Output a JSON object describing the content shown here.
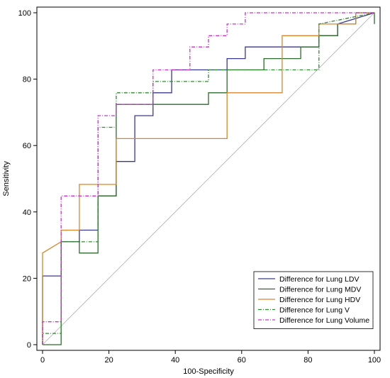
{
  "chart_data": {
    "type": "line",
    "title": "",
    "xlabel": "100-Specificity",
    "ylabel": "Sensitivity",
    "xlim": [
      0,
      100
    ],
    "ylim": [
      0,
      100
    ],
    "x_ticks": [
      0,
      20,
      40,
      60,
      80,
      100
    ],
    "y_ticks": [
      0,
      20,
      40,
      60,
      80,
      100
    ],
    "x_tick_labels": [
      "0",
      "20",
      "40",
      "60",
      "80",
      "100"
    ],
    "y_tick_labels": [
      "0",
      "20",
      "40",
      "60",
      "80",
      "100"
    ],
    "grid": false,
    "legend_position": "bottom-right",
    "reference_line": {
      "from": [
        0,
        0
      ],
      "to": [
        100,
        100
      ],
      "color": "#b0b0b0"
    },
    "series": [
      {
        "name": "Difference for Lung LDV",
        "color": "#3a3a8c",
        "dash": "solid",
        "x": [
          0,
          0,
          5.6,
          5.6,
          11.1,
          11.1,
          16.7,
          16.7,
          22.2,
          22.2,
          27.8,
          27.8,
          33.3,
          33.3,
          38.9,
          38.9,
          55.6,
          55.6,
          61.1,
          61.1,
          83.3,
          83.3,
          88.9,
          88.9,
          100
        ],
        "y": [
          0,
          20.7,
          20.7,
          31.0,
          31.0,
          34.5,
          34.5,
          44.8,
          44.8,
          55.2,
          55.2,
          69.0,
          69.0,
          75.9,
          75.9,
          82.8,
          82.8,
          86.2,
          86.2,
          89.7,
          89.7,
          93.1,
          93.1,
          96.6,
          100
        ]
      },
      {
        "name": "Difference for Lung MDV",
        "color": "#2e6b2e",
        "dash": "solid",
        "x": [
          0,
          5.6,
          5.6,
          11.1,
          11.1,
          16.7,
          16.7,
          22.2,
          22.2,
          50.0,
          50.0,
          55.6,
          55.6,
          66.7,
          66.7,
          77.8,
          77.8,
          83.3,
          83.3,
          88.9,
          88.9,
          94.4,
          94.4,
          100,
          100
        ],
        "y": [
          0,
          0,
          31.0,
          31.0,
          27.6,
          27.6,
          44.8,
          44.8,
          72.4,
          72.4,
          75.9,
          75.9,
          82.8,
          82.8,
          86.2,
          86.2,
          89.7,
          89.7,
          93.1,
          93.1,
          96.6,
          96.6,
          100,
          100,
          96.6
        ]
      },
      {
        "name": "Difference for Lung HDV",
        "color": "#d9862b",
        "dash": "solid",
        "x": [
          0,
          0,
          5.6,
          5.6,
          11.1,
          11.1,
          22.2,
          22.2,
          55.6,
          55.6,
          72.2,
          72.2,
          83.3,
          83.3,
          94.4,
          94.4,
          100
        ],
        "y": [
          0,
          27.6,
          31.0,
          34.5,
          34.5,
          48.3,
          48.3,
          62.1,
          62.1,
          75.9,
          75.9,
          93.1,
          93.1,
          96.6,
          96.6,
          100,
          100
        ]
      },
      {
        "name": "Difference for Lung V",
        "color": "#2e8b2e",
        "dash": "dashdot",
        "x": [
          0,
          0,
          5.6,
          5.6,
          11.1,
          11.1,
          16.7,
          16.7,
          22.2,
          22.2,
          33.3,
          33.3,
          44.4,
          44.4,
          50.0,
          50.0,
          66.7,
          66.7,
          83.3,
          83.3,
          100
        ],
        "y": [
          0,
          3.4,
          3.4,
          31.0,
          31.0,
          31.0,
          31.0,
          65.5,
          65.5,
          75.9,
          75.9,
          79.3,
          79.3,
          79.3,
          79.3,
          82.8,
          82.8,
          82.8,
          82.8,
          96.6,
          100
        ]
      },
      {
        "name": "Difference for Lung Volume",
        "color": "#cc33cc",
        "dash": "dashdot",
        "x": [
          0,
          0,
          5.6,
          5.6,
          16.7,
          16.7,
          22.2,
          22.2,
          33.3,
          33.3,
          44.4,
          44.4,
          50.0,
          50.0,
          55.6,
          55.6,
          61.1,
          61.1,
          100
        ],
        "y": [
          0,
          6.9,
          6.9,
          44.8,
          44.8,
          69.0,
          69.0,
          72.4,
          72.4,
          82.8,
          82.8,
          89.7,
          89.7,
          93.1,
          93.1,
          96.6,
          96.6,
          100,
          100
        ]
      }
    ]
  }
}
